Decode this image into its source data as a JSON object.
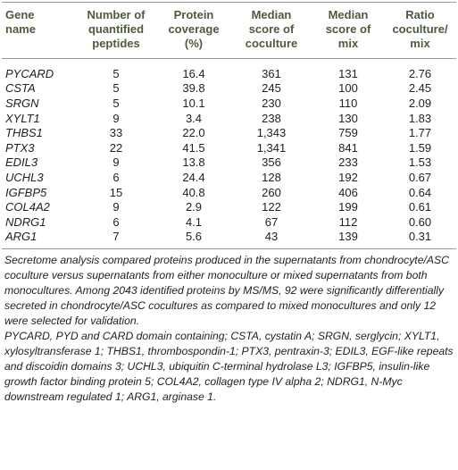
{
  "table": {
    "header": [
      [
        "Gene",
        "name"
      ],
      [
        "Number of",
        "quantified",
        "peptides"
      ],
      [
        "Protein",
        "coverage",
        "(%)"
      ],
      [
        "Median",
        "score of",
        "coculture"
      ],
      [
        "Median",
        "score of",
        "mix"
      ],
      [
        "Ratio",
        "coculture/",
        "mix"
      ]
    ],
    "rows": [
      [
        "PYCARD",
        "5",
        "16.4",
        "361",
        "131",
        "2.76"
      ],
      [
        "CSTA",
        "5",
        "39.8",
        "245",
        "100",
        "2.45"
      ],
      [
        "SRGN",
        "5",
        "10.1",
        "230",
        "110",
        "2.09"
      ],
      [
        "XYLT1",
        "9",
        "3.4",
        "238",
        "130",
        "1.83"
      ],
      [
        "THBS1",
        "33",
        "22.0",
        "1,343",
        "759",
        "1.77"
      ],
      [
        "PTX3",
        "22",
        "41.5",
        "1,341",
        "841",
        "1.59"
      ],
      [
        "EDIL3",
        "9",
        "13.8",
        "356",
        "233",
        "1.53"
      ],
      [
        "UCHL3",
        "6",
        "24.4",
        "128",
        "192",
        "0.67"
      ],
      [
        "IGFBP5",
        "15",
        "40.8",
        "260",
        "406",
        "0.64"
      ],
      [
        "COL4A2",
        "9",
        "2.9",
        "122",
        "199",
        "0.61"
      ],
      [
        "NDRG1",
        "6",
        "4.1",
        "67",
        "112",
        "0.60"
      ],
      [
        "ARG1",
        "7",
        "5.6",
        "43",
        "139",
        "0.31"
      ]
    ]
  },
  "footnotes": [
    "Secretome analysis compared proteins produced in the supernatants from chondrocyte/ASC coculture versus supernatants from either monoculture or mixed supernatants from both monocultures. Among 2043 identified proteins by MS/MS, 92 were significantly differentially secreted in chondrocyte/ASC cocultures as compared to mixed monocultures and only 12 were selected for validation.",
    "PYCARD, PYD and CARD domain containing; CSTA, cystatin A; SRGN, serglycin; XYLT1, xylosyltransferase 1; THBS1, thrombospondin-1; PTX3, pentraxin-3; EDIL3, EGF-like repeats and discoidin domains 3; UCHL3, ubiquitin C-terminal hydrolase L3; IGFBP5, insulin-like growth factor binding protein 5; COL4A2, collagen type IV alpha 2; NDRG1, N-Myc downstream regulated 1; ARG1, arginase 1."
  ]
}
